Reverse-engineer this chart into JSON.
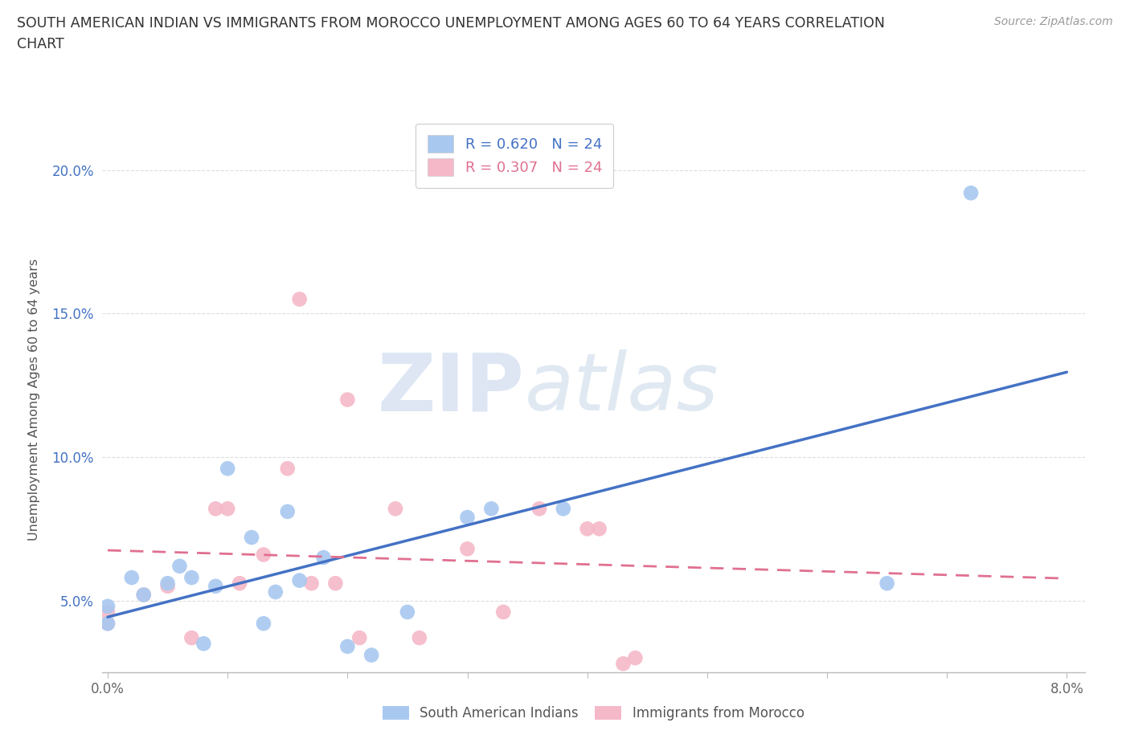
{
  "title_line1": "SOUTH AMERICAN INDIAN VS IMMIGRANTS FROM MOROCCO UNEMPLOYMENT AMONG AGES 60 TO 64 YEARS CORRELATION",
  "title_line2": "CHART",
  "source": "Source: ZipAtlas.com",
  "ylabel": "Unemployment Among Ages 60 to 64 years",
  "xlim": [
    -0.0005,
    0.0815
  ],
  "ylim": [
    0.025,
    0.215
  ],
  "xticks": [
    0.0,
    0.01,
    0.02,
    0.03,
    0.04,
    0.05,
    0.06,
    0.07,
    0.08
  ],
  "xticklabels": [
    "0.0%",
    "",
    "",
    "",
    "",
    "",
    "",
    "",
    "8.0%"
  ],
  "yticks": [
    0.05,
    0.1,
    0.15,
    0.2
  ],
  "yticklabels": [
    "5.0%",
    "10.0%",
    "15.0%",
    "20.0%"
  ],
  "blue_legend": "R = 0.620   N = 24",
  "pink_legend": "R = 0.307   N = 24",
  "blue_color": "#A8C8F0",
  "pink_color": "#F5B8C8",
  "blue_line_color": "#4472C4",
  "pink_line_color": "#E07090",
  "blue_scatter_x": [
    0.0,
    0.0,
    0.002,
    0.003,
    0.005,
    0.006,
    0.007,
    0.008,
    0.009,
    0.01,
    0.012,
    0.013,
    0.014,
    0.015,
    0.016,
    0.018,
    0.02,
    0.022,
    0.025,
    0.03,
    0.032,
    0.038,
    0.065,
    0.072
  ],
  "blue_scatter_y": [
    0.042,
    0.048,
    0.058,
    0.052,
    0.056,
    0.062,
    0.058,
    0.035,
    0.055,
    0.096,
    0.072,
    0.042,
    0.053,
    0.081,
    0.057,
    0.065,
    0.034,
    0.031,
    0.046,
    0.079,
    0.082,
    0.082,
    0.056,
    0.192
  ],
  "pink_scatter_x": [
    0.0,
    0.0,
    0.003,
    0.005,
    0.007,
    0.009,
    0.01,
    0.011,
    0.013,
    0.015,
    0.016,
    0.017,
    0.019,
    0.02,
    0.021,
    0.024,
    0.026,
    0.03,
    0.033,
    0.036,
    0.04,
    0.041,
    0.043,
    0.044
  ],
  "pink_scatter_y": [
    0.042,
    0.046,
    0.052,
    0.055,
    0.037,
    0.082,
    0.082,
    0.056,
    0.066,
    0.096,
    0.155,
    0.056,
    0.056,
    0.12,
    0.037,
    0.082,
    0.037,
    0.068,
    0.046,
    0.082,
    0.075,
    0.075,
    0.028,
    0.03
  ],
  "background_color": "#FFFFFF",
  "grid_color": "#DDDDDD",
  "blue_trendline_x": [
    0.0,
    0.08
  ],
  "pink_trendline_x": [
    0.0,
    0.08
  ]
}
